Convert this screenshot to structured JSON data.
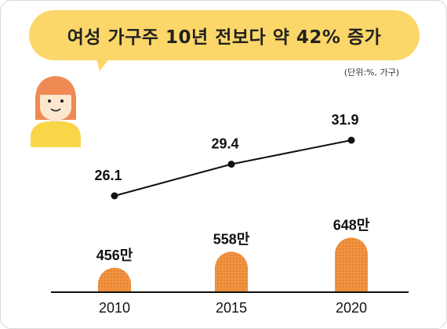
{
  "header": {
    "title": "여성 가구주 10년 전보다 약 42% 증가",
    "unit_note": "(단위:%, 가구)"
  },
  "icons": {
    "avatar": "woman-avatar-icon"
  },
  "colors": {
    "bubble": "#fbd769",
    "bar": "#f0903c",
    "line": "#111111",
    "hair": "#f08a55",
    "shirt": "#f9d648"
  },
  "chart_data": {
    "type": "bar",
    "categories": [
      "2010",
      "2015",
      "2020"
    ],
    "series": [
      {
        "type": "line",
        "values": [
          26.1,
          29.4,
          31.9
        ],
        "labels": [
          "26.1",
          "29.4",
          "31.9"
        ]
      },
      {
        "type": "bar",
        "values": [
          4560000,
          5580000,
          6480000
        ],
        "labels": [
          "456만",
          "558만",
          "648만"
        ]
      }
    ],
    "title": "여성 가구주 10년 전보다 약 42% 증가",
    "unit": "(단위:%, 가구)"
  }
}
